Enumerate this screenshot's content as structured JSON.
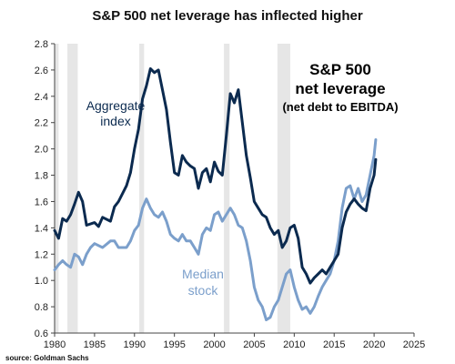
{
  "chart_data": {
    "type": "line",
    "title": "S&P 500 net leverage has inflected higher",
    "annotation": {
      "line1": "S&P 500",
      "line2": "net leverage",
      "line3": "(net debt to EBITDA)"
    },
    "source": "source: Goldman Sachs",
    "xlim": [
      1980,
      2025
    ],
    "ylim": [
      0.6,
      2.8
    ],
    "xticks": [
      "1980",
      "1985",
      "1990",
      "1995",
      "2000",
      "2005",
      "2010",
      "2015",
      "2020",
      "2025"
    ],
    "yticks": [
      "0.6",
      "0.8",
      "1.0",
      "1.2",
      "1.4",
      "1.6",
      "1.8",
      "2.0",
      "2.2",
      "2.4",
      "2.6",
      "2.8"
    ],
    "recessions": [
      [
        1980.0,
        1980.5
      ],
      [
        1981.6,
        1982.9
      ],
      [
        1990.6,
        1991.2
      ],
      [
        2001.2,
        2001.9
      ],
      [
        2007.9,
        2009.5
      ]
    ],
    "series": [
      {
        "name": "Aggregate index",
        "label_lines": [
          "Aggregate",
          "index"
        ],
        "color": "#0b2a4f",
        "points": [
          [
            1980.0,
            1.38
          ],
          [
            1980.5,
            1.32
          ],
          [
            1981.0,
            1.47
          ],
          [
            1981.5,
            1.45
          ],
          [
            1982.0,
            1.5
          ],
          [
            1982.5,
            1.58
          ],
          [
            1983.0,
            1.67
          ],
          [
            1983.5,
            1.6
          ],
          [
            1984.0,
            1.42
          ],
          [
            1985.0,
            1.44
          ],
          [
            1985.5,
            1.41
          ],
          [
            1986.0,
            1.48
          ],
          [
            1987.0,
            1.45
          ],
          [
            1987.5,
            1.56
          ],
          [
            1988.0,
            1.6
          ],
          [
            1989.0,
            1.72
          ],
          [
            1989.5,
            1.82
          ],
          [
            1990.0,
            2.0
          ],
          [
            1990.5,
            2.15
          ],
          [
            1991.0,
            2.38
          ],
          [
            1991.5,
            2.48
          ],
          [
            1992.0,
            2.61
          ],
          [
            1992.5,
            2.58
          ],
          [
            1993.0,
            2.6
          ],
          [
            1993.5,
            2.45
          ],
          [
            1994.0,
            2.3
          ],
          [
            1994.5,
            2.05
          ],
          [
            1995.0,
            1.82
          ],
          [
            1995.5,
            1.8
          ],
          [
            1996.0,
            1.95
          ],
          [
            1996.5,
            1.9
          ],
          [
            1997.0,
            1.87
          ],
          [
            1997.5,
            1.85
          ],
          [
            1998.0,
            1.7
          ],
          [
            1998.5,
            1.82
          ],
          [
            1999.0,
            1.85
          ],
          [
            1999.5,
            1.75
          ],
          [
            2000.0,
            1.9
          ],
          [
            2000.5,
            1.83
          ],
          [
            2001.0,
            1.8
          ],
          [
            2001.5,
            2.1
          ],
          [
            2002.0,
            2.42
          ],
          [
            2002.5,
            2.35
          ],
          [
            2003.0,
            2.45
          ],
          [
            2003.5,
            2.2
          ],
          [
            2004.0,
            1.95
          ],
          [
            2004.5,
            1.78
          ],
          [
            2005.0,
            1.6
          ],
          [
            2005.5,
            1.55
          ],
          [
            2006.0,
            1.5
          ],
          [
            2006.5,
            1.48
          ],
          [
            2007.0,
            1.4
          ],
          [
            2007.5,
            1.35
          ],
          [
            2008.0,
            1.38
          ],
          [
            2008.5,
            1.25
          ],
          [
            2009.0,
            1.3
          ],
          [
            2009.5,
            1.4
          ],
          [
            2010.0,
            1.42
          ],
          [
            2010.5,
            1.32
          ],
          [
            2011.0,
            1.1
          ],
          [
            2011.5,
            1.05
          ],
          [
            2012.0,
            0.98
          ],
          [
            2012.5,
            1.02
          ],
          [
            2013.0,
            1.05
          ],
          [
            2013.5,
            1.08
          ],
          [
            2014.0,
            1.05
          ],
          [
            2014.5,
            1.1
          ],
          [
            2015.0,
            1.15
          ],
          [
            2015.5,
            1.2
          ],
          [
            2016.0,
            1.4
          ],
          [
            2016.5,
            1.52
          ],
          [
            2017.0,
            1.58
          ],
          [
            2017.5,
            1.62
          ],
          [
            2018.0,
            1.58
          ],
          [
            2018.5,
            1.55
          ],
          [
            2019.0,
            1.53
          ],
          [
            2019.5,
            1.7
          ],
          [
            2020.0,
            1.8
          ],
          [
            2020.2,
            1.92
          ]
        ]
      },
      {
        "name": "Median stock",
        "label_lines": [
          "Median",
          "stock"
        ],
        "color": "#7b9fcb",
        "points": [
          [
            1980.0,
            1.08
          ],
          [
            1980.5,
            1.12
          ],
          [
            1981.0,
            1.15
          ],
          [
            1981.5,
            1.12
          ],
          [
            1982.0,
            1.1
          ],
          [
            1982.5,
            1.2
          ],
          [
            1983.0,
            1.18
          ],
          [
            1983.5,
            1.12
          ],
          [
            1984.0,
            1.2
          ],
          [
            1984.5,
            1.25
          ],
          [
            1985.0,
            1.28
          ],
          [
            1986.0,
            1.25
          ],
          [
            1987.0,
            1.3
          ],
          [
            1987.5,
            1.3
          ],
          [
            1988.0,
            1.25
          ],
          [
            1989.0,
            1.25
          ],
          [
            1989.5,
            1.3
          ],
          [
            1990.0,
            1.38
          ],
          [
            1990.5,
            1.42
          ],
          [
            1991.0,
            1.55
          ],
          [
            1991.5,
            1.62
          ],
          [
            1992.0,
            1.55
          ],
          [
            1992.5,
            1.5
          ],
          [
            1993.0,
            1.48
          ],
          [
            1993.5,
            1.52
          ],
          [
            1994.0,
            1.45
          ],
          [
            1994.5,
            1.35
          ],
          [
            1995.0,
            1.32
          ],
          [
            1995.5,
            1.3
          ],
          [
            1996.0,
            1.35
          ],
          [
            1996.5,
            1.3
          ],
          [
            1997.0,
            1.3
          ],
          [
            1997.5,
            1.25
          ],
          [
            1998.0,
            1.2
          ],
          [
            1998.5,
            1.35
          ],
          [
            1999.0,
            1.4
          ],
          [
            1999.5,
            1.38
          ],
          [
            2000.0,
            1.5
          ],
          [
            2000.5,
            1.52
          ],
          [
            2001.0,
            1.45
          ],
          [
            2001.5,
            1.5
          ],
          [
            2002.0,
            1.55
          ],
          [
            2002.5,
            1.5
          ],
          [
            2003.0,
            1.42
          ],
          [
            2003.5,
            1.4
          ],
          [
            2004.0,
            1.3
          ],
          [
            2004.5,
            1.15
          ],
          [
            2005.0,
            0.95
          ],
          [
            2005.5,
            0.85
          ],
          [
            2006.0,
            0.8
          ],
          [
            2006.5,
            0.7
          ],
          [
            2007.0,
            0.72
          ],
          [
            2007.5,
            0.8
          ],
          [
            2008.0,
            0.85
          ],
          [
            2008.5,
            0.95
          ],
          [
            2009.0,
            1.05
          ],
          [
            2009.5,
            1.08
          ],
          [
            2010.0,
            0.95
          ],
          [
            2010.5,
            0.85
          ],
          [
            2011.0,
            0.78
          ],
          [
            2011.5,
            0.8
          ],
          [
            2012.0,
            0.75
          ],
          [
            2012.5,
            0.8
          ],
          [
            2013.0,
            0.88
          ],
          [
            2013.5,
            0.95
          ],
          [
            2014.0,
            1.0
          ],
          [
            2014.5,
            1.05
          ],
          [
            2015.0,
            1.15
          ],
          [
            2015.5,
            1.3
          ],
          [
            2016.0,
            1.55
          ],
          [
            2016.5,
            1.7
          ],
          [
            2017.0,
            1.72
          ],
          [
            2017.5,
            1.62
          ],
          [
            2018.0,
            1.7
          ],
          [
            2018.5,
            1.6
          ],
          [
            2019.0,
            1.65
          ],
          [
            2019.5,
            1.8
          ],
          [
            2020.0,
            1.95
          ],
          [
            2020.2,
            2.07
          ]
        ]
      }
    ]
  }
}
